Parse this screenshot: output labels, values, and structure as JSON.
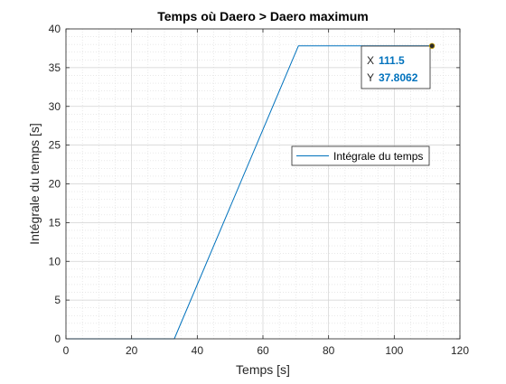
{
  "chart_data": {
    "type": "line",
    "title": "Temps où Daero > Daero maximum",
    "xlabel": "Temps [s]",
    "ylabel": "Intégrale du temps [s]",
    "xlim": [
      0,
      120
    ],
    "ylim": [
      0,
      40
    ],
    "xticks": [
      "0",
      "20",
      "40",
      "60",
      "80",
      "100",
      "120"
    ],
    "yticks": [
      "0",
      "5",
      "10",
      "15",
      "20",
      "25",
      "30",
      "35",
      "40"
    ],
    "grid": true,
    "minor_grid": true,
    "legend_position": "middle-right",
    "series": [
      {
        "name": "Intégrale du temps",
        "color": "#0072BD",
        "x": [
          0,
          33,
          70.8,
          111.5
        ],
        "y": [
          0,
          0,
          37.8062,
          37.8062
        ]
      }
    ],
    "datatip": {
      "x_label": "X",
      "x_value": "111.5",
      "y_label": "Y",
      "y_value": "37.8062",
      "value_color": "#0072BD",
      "marker_x": 111.5,
      "marker_y": 37.8062
    }
  }
}
